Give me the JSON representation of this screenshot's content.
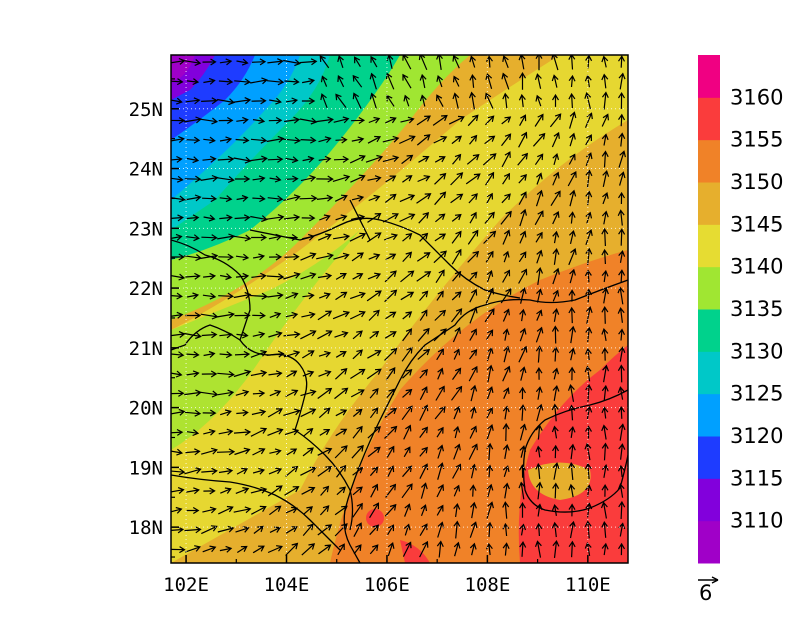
{
  "map": {
    "lon_range": [
      101.7,
      110.8
    ],
    "lat_range": [
      17.4,
      25.9
    ],
    "lon_ticks": [
      {
        "value": 102,
        "label": "102E"
      },
      {
        "value": 104,
        "label": "104E"
      },
      {
        "value": 106,
        "label": "106E"
      },
      {
        "value": 108,
        "label": "108E"
      },
      {
        "value": 110,
        "label": "110E"
      }
    ],
    "lat_ticks": [
      {
        "value": 18,
        "label": "18N"
      },
      {
        "value": 19,
        "label": "19N"
      },
      {
        "value": 20,
        "label": "20N"
      },
      {
        "value": 21,
        "label": "21N"
      },
      {
        "value": 22,
        "label": "22N"
      },
      {
        "value": 23,
        "label": "23N"
      },
      {
        "value": 24,
        "label": "24N"
      },
      {
        "value": 25,
        "label": "25N"
      }
    ],
    "contour_levels": [
      3110,
      3115,
      3120,
      3125,
      3130,
      3135,
      3140,
      3145,
      3150,
      3155,
      3160
    ],
    "level_colors": [
      "#a000c8",
      "#8200dc",
      "#1e3cff",
      "#00a0ff",
      "#00c8c8",
      "#00d28c",
      "#a0e632",
      "#e6dc32",
      "#e6af2d",
      "#f08228",
      "#fa3c3c",
      "#f00082"
    ],
    "grid": "dotted"
  },
  "colorbar": {
    "labels": [
      "3160",
      "3155",
      "3150",
      "3145",
      "3140",
      "3135",
      "3130",
      "3125",
      "3120",
      "3115",
      "3110"
    ]
  },
  "vector_key": {
    "magnitude_label": "6"
  }
}
